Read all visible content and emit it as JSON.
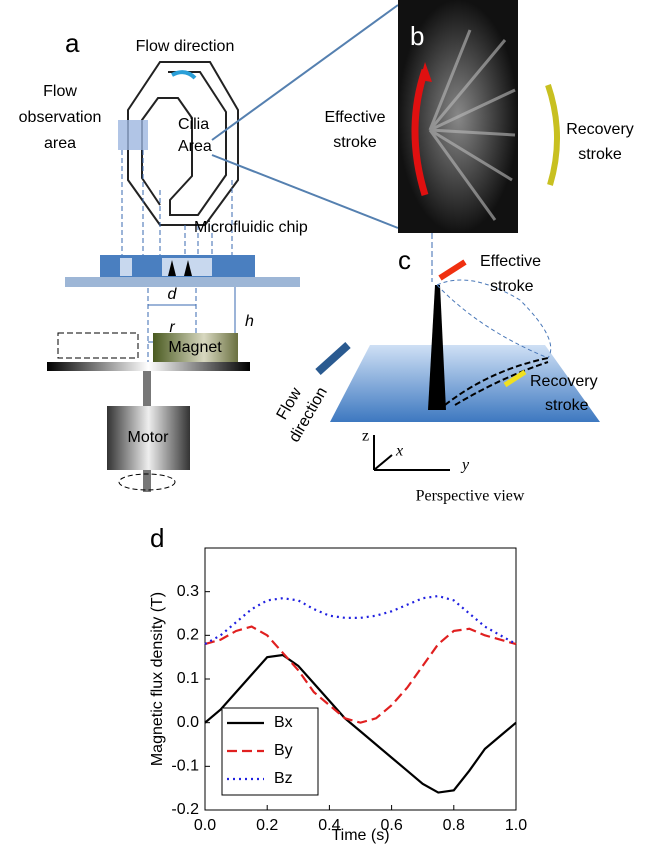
{
  "panels": {
    "a": "a",
    "b": "b",
    "c": "c",
    "d": "d"
  },
  "diagram_a": {
    "flow_direction": "Flow direction",
    "flow_observation_area": [
      "Flow",
      "observation",
      "area"
    ],
    "cilia_area": [
      "Cilia",
      "Area"
    ],
    "microfluidic_chip": "Microfluidic chip",
    "d": "d",
    "r": "r",
    "h": "h",
    "magnet": "Magnet",
    "motor": "Motor"
  },
  "diagram_b": {
    "effective_stroke": [
      "Effective",
      "stroke"
    ],
    "recovery_stroke": [
      "Recovery",
      "stroke"
    ]
  },
  "diagram_c": {
    "effective_stroke": [
      "Effective",
      "stroke"
    ],
    "recovery_stroke": [
      "Recovery",
      "stroke"
    ],
    "flow_direction": [
      "Flow",
      "direction"
    ],
    "axes": {
      "z": "z",
      "x": "x",
      "y": "y"
    },
    "caption": "Perspective view"
  },
  "chart_data": {
    "type": "line",
    "xlabel": "Time (s)",
    "ylabel": "Magnetic flux density (T)",
    "x": [
      0,
      0.05,
      0.1,
      0.15,
      0.2,
      0.25,
      0.3,
      0.35,
      0.4,
      0.45,
      0.5,
      0.55,
      0.6,
      0.65,
      0.7,
      0.75,
      0.8,
      0.85,
      0.9,
      0.95,
      1.0
    ],
    "series": [
      {
        "name": "Bx",
        "color": "#000000",
        "dash": "solid",
        "values": [
          0,
          0.03,
          0.07,
          0.11,
          0.15,
          0.155,
          0.13,
          0.09,
          0.05,
          0.01,
          -0.02,
          -0.05,
          -0.08,
          -0.11,
          -0.14,
          -0.16,
          -0.155,
          -0.11,
          -0.06,
          -0.03,
          0
        ]
      },
      {
        "name": "By",
        "color": "#e02020",
        "dash": "dashed",
        "values": [
          0.18,
          0.19,
          0.21,
          0.22,
          0.2,
          0.16,
          0.12,
          0.07,
          0.04,
          0.01,
          0,
          0.01,
          0.04,
          0.08,
          0.13,
          0.18,
          0.21,
          0.215,
          0.2,
          0.19,
          0.18
        ]
      },
      {
        "name": "Bz",
        "color": "#2020e0",
        "dash": "dotted",
        "values": [
          0.18,
          0.2,
          0.23,
          0.26,
          0.28,
          0.285,
          0.28,
          0.26,
          0.245,
          0.24,
          0.24,
          0.245,
          0.255,
          0.27,
          0.285,
          0.29,
          0.28,
          0.25,
          0.22,
          0.2,
          0.18
        ]
      }
    ],
    "xlim": [
      0,
      1
    ],
    "xticks": [
      {
        "value": 0,
        "label": "0.0"
      },
      0.2,
      0.4,
      0.6,
      0.8,
      {
        "value": 1,
        "label": "1.0"
      }
    ],
    "ylim": [
      -0.2,
      0.4
    ],
    "yticks": [
      -0.2,
      -0.1,
      {
        "value": 0,
        "label": "0.0"
      },
      0.1,
      0.2,
      0.3
    ],
    "legend": "lower left"
  }
}
